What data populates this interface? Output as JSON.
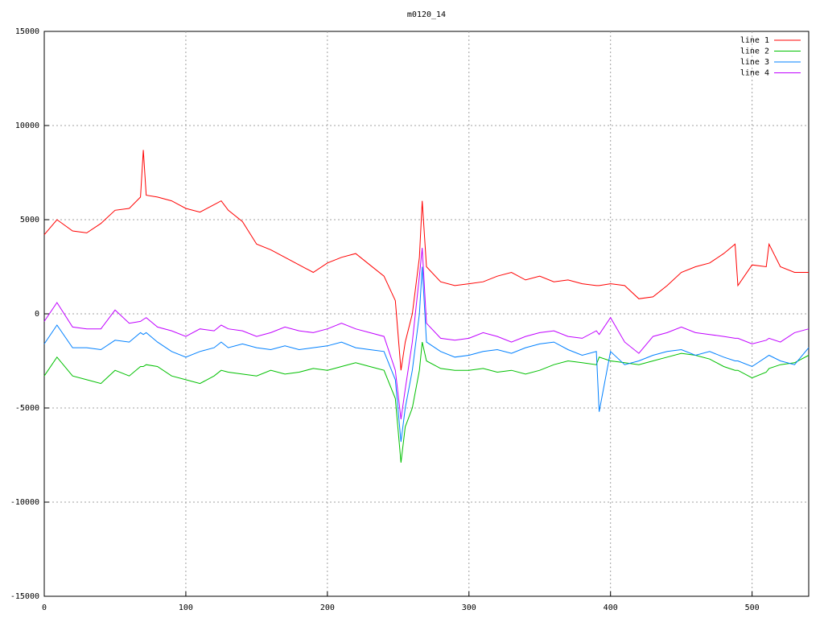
{
  "chart_data": {
    "type": "line",
    "title": "m0120_14",
    "x": [
      0,
      9,
      20,
      30,
      40,
      50,
      60,
      68,
      70,
      72,
      80,
      90,
      100,
      110,
      120,
      125,
      130,
      140,
      150,
      160,
      170,
      180,
      190,
      200,
      210,
      220,
      230,
      240,
      248,
      252,
      255,
      260,
      265,
      267,
      270,
      280,
      290,
      300,
      310,
      320,
      330,
      340,
      350,
      360,
      370,
      380,
      390,
      392,
      400,
      410,
      420,
      430,
      440,
      450,
      460,
      470,
      480,
      488,
      490,
      500,
      510,
      512,
      520,
      530,
      540
    ],
    "series": [
      {
        "name": "line 1",
        "color": "#ff0000",
        "values": [
          4200,
          5000,
          4400,
          4300,
          4800,
          5500,
          5600,
          6200,
          8700,
          6300,
          6200,
          6000,
          5600,
          5400,
          5800,
          6000,
          5500,
          4900,
          3700,
          3400,
          3000,
          2600,
          2200,
          2700,
          3000,
          3200,
          2600,
          2000,
          700,
          -3000,
          -1500,
          0,
          3000,
          6000,
          2500,
          1700,
          1500,
          1600,
          1700,
          2000,
          2200,
          1800,
          2000,
          1700,
          1800,
          1600,
          1500,
          1500,
          1600,
          1500,
          800,
          900,
          1500,
          2200,
          2500,
          2700,
          3200,
          3700,
          1500,
          2600,
          2500,
          3700,
          2500,
          2200,
          2200
        ]
      },
      {
        "name": "line 2",
        "color": "#00c000",
        "values": [
          -3300,
          -2300,
          -3300,
          -3500,
          -3700,
          -3000,
          -3300,
          -2800,
          -2800,
          -2700,
          -2800,
          -3300,
          -3500,
          -3700,
          -3300,
          -3000,
          -3100,
          -3200,
          -3300,
          -3000,
          -3200,
          -3100,
          -2900,
          -3000,
          -2800,
          -2600,
          -2800,
          -3000,
          -4500,
          -7900,
          -6000,
          -5000,
          -3000,
          -1500,
          -2500,
          -2900,
          -3000,
          -3000,
          -2900,
          -3100,
          -3000,
          -3200,
          -3000,
          -2700,
          -2500,
          -2600,
          -2700,
          -2300,
          -2500,
          -2600,
          -2700,
          -2500,
          -2300,
          -2100,
          -2200,
          -2400,
          -2800,
          -3000,
          -3000,
          -3400,
          -3100,
          -2900,
          -2700,
          -2600,
          -2200
        ]
      },
      {
        "name": "line 3",
        "color": "#0080ff",
        "values": [
          -1600,
          -600,
          -1800,
          -1800,
          -1900,
          -1400,
          -1500,
          -1000,
          -1100,
          -1000,
          -1500,
          -2000,
          -2300,
          -2000,
          -1800,
          -1500,
          -1800,
          -1600,
          -1800,
          -1900,
          -1700,
          -1900,
          -1800,
          -1700,
          -1500,
          -1800,
          -1900,
          -2000,
          -3500,
          -6800,
          -5000,
          -3000,
          0,
          2500,
          -1500,
          -2000,
          -2300,
          -2200,
          -2000,
          -1900,
          -2100,
          -1800,
          -1600,
          -1500,
          -1900,
          -2200,
          -2000,
          -5200,
          -2000,
          -2700,
          -2500,
          -2200,
          -2000,
          -1900,
          -2200,
          -2000,
          -2300,
          -2500,
          -2500,
          -2800,
          -2300,
          -2200,
          -2500,
          -2700,
          -1800
        ]
      },
      {
        "name": "line 4",
        "color": "#c000ff",
        "values": [
          -400,
          600,
          -700,
          -800,
          -800,
          200,
          -500,
          -400,
          -300,
          -200,
          -700,
          -900,
          -1200,
          -800,
          -900,
          -600,
          -800,
          -900,
          -1200,
          -1000,
          -700,
          -900,
          -1000,
          -800,
          -500,
          -800,
          -1000,
          -1200,
          -3000,
          -5600,
          -4000,
          -1500,
          2000,
          3500,
          -500,
          -1300,
          -1400,
          -1300,
          -1000,
          -1200,
          -1500,
          -1200,
          -1000,
          -900,
          -1200,
          -1300,
          -900,
          -1100,
          -200,
          -1500,
          -2100,
          -1200,
          -1000,
          -700,
          -1000,
          -1100,
          -1200,
          -1300,
          -1300,
          -1600,
          -1400,
          -1300,
          -1500,
          -1000,
          -800
        ]
      }
    ],
    "xlim": [
      0,
      540
    ],
    "xticks": [
      0,
      100,
      200,
      300,
      400,
      500
    ],
    "ylim": [
      -15000,
      15000
    ],
    "yticks": [
      -15000,
      -10000,
      -5000,
      0,
      5000,
      10000,
      15000
    ],
    "grid": true,
    "legend": "top-right"
  }
}
